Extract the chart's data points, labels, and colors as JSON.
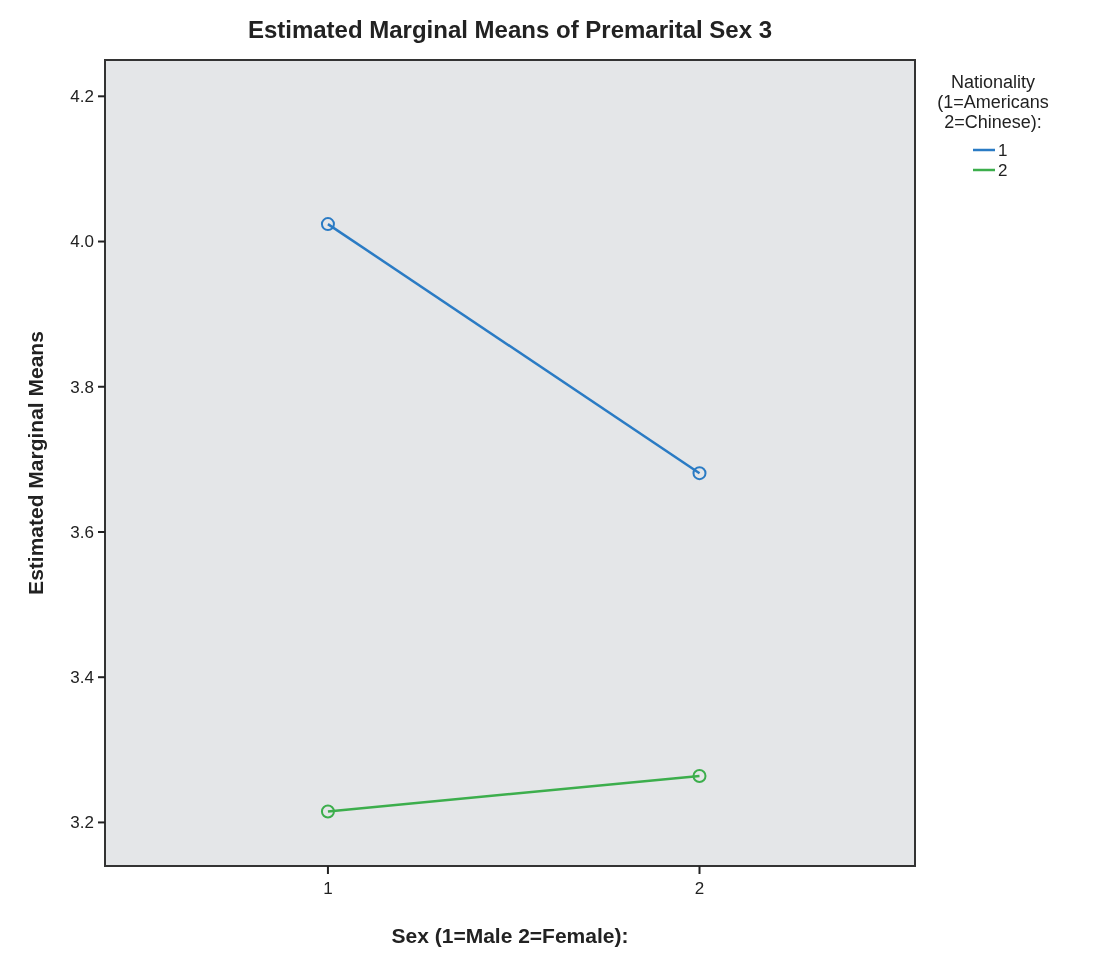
{
  "chart_data": {
    "type": "line",
    "title": "Estimated Marginal Means of Premarital Sex 3",
    "xlabel": "Sex (1=Male 2=Female):",
    "ylabel": "Estimated Marginal Means",
    "legend_title": "Nationality (1=Americans 2=Chinese):",
    "x": [
      1,
      2
    ],
    "xlim": [
      0.4,
      2.58
    ],
    "xticks": [
      1,
      2
    ],
    "ylim": [
      3.14,
      4.25
    ],
    "yticks": [
      3.2,
      3.4,
      3.6,
      3.8,
      {
        "value": 4,
        "label": "4.0"
      },
      4.2
    ],
    "series": [
      {
        "name": "1",
        "color": "#2a7bc4",
        "values": [
          4.024,
          3.681
        ]
      },
      {
        "name": "2",
        "color": "#3cae4c",
        "values": [
          3.215,
          3.264
        ]
      }
    ],
    "marker": "circle",
    "legend": "right",
    "grid": false
  }
}
